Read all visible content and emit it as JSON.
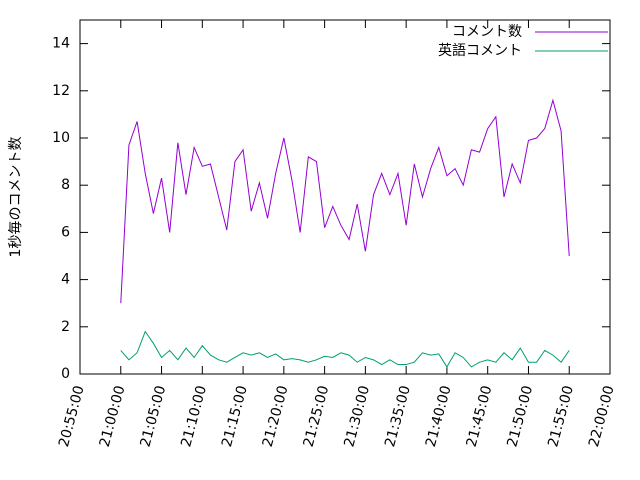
{
  "chart_data": {
    "type": "line",
    "ylabel": "1秒毎のコメント数",
    "x": [
      "21:00:00",
      "21:01:00",
      "21:02:00",
      "21:03:00",
      "21:04:00",
      "21:05:00",
      "21:06:00",
      "21:07:00",
      "21:08:00",
      "21:09:00",
      "21:10:00",
      "21:11:00",
      "21:12:00",
      "21:13:00",
      "21:14:00",
      "21:15:00",
      "21:16:00",
      "21:17:00",
      "21:18:00",
      "21:19:00",
      "21:20:00",
      "21:21:00",
      "21:22:00",
      "21:23:00",
      "21:24:00",
      "21:25:00",
      "21:26:00",
      "21:27:00",
      "21:28:00",
      "21:29:00",
      "21:30:00",
      "21:31:00",
      "21:32:00",
      "21:33:00",
      "21:34:00",
      "21:35:00",
      "21:36:00",
      "21:37:00",
      "21:38:00",
      "21:39:00",
      "21:40:00",
      "21:41:00",
      "21:42:00",
      "21:43:00",
      "21:44:00",
      "21:45:00",
      "21:46:00",
      "21:47:00",
      "21:48:00",
      "21:49:00",
      "21:50:00",
      "21:51:00",
      "21:52:00",
      "21:53:00",
      "21:54:00",
      "21:55:00"
    ],
    "series": [
      {
        "name": "コメント数",
        "color": "#9400d3",
        "values": [
          3.0,
          9.7,
          10.7,
          8.5,
          6.8,
          8.3,
          6.0,
          9.8,
          7.6,
          9.6,
          8.8,
          8.9,
          7.5,
          6.1,
          9.0,
          9.5,
          6.9,
          8.1,
          6.6,
          8.5,
          10.0,
          8.2,
          6.0,
          9.2,
          9.0,
          6.2,
          7.1,
          6.3,
          5.7,
          7.2,
          5.2,
          7.6,
          8.5,
          7.6,
          8.5,
          6.3,
          8.9,
          7.5,
          8.7,
          9.6,
          8.4,
          8.7,
          8.0,
          9.5,
          9.4,
          10.4,
          10.9,
          7.5,
          8.9,
          8.1,
          9.9,
          10.0,
          10.4,
          11.6,
          10.3,
          5.0
        ]
      },
      {
        "name": "英語コメント",
        "color": "#009e73",
        "values": [
          1.0,
          0.6,
          0.9,
          1.8,
          1.3,
          0.7,
          1.0,
          0.6,
          1.1,
          0.7,
          1.2,
          0.8,
          0.6,
          0.5,
          0.7,
          0.9,
          0.8,
          0.9,
          0.7,
          0.85,
          0.6,
          0.65,
          0.6,
          0.5,
          0.6,
          0.75,
          0.7,
          0.9,
          0.8,
          0.5,
          0.7,
          0.6,
          0.4,
          0.6,
          0.4,
          0.4,
          0.5,
          0.9,
          0.8,
          0.85,
          0.3,
          0.9,
          0.7,
          0.3,
          0.5,
          0.6,
          0.5,
          0.9,
          0.6,
          1.1,
          0.5,
          0.5,
          1.0,
          0.8,
          0.5,
          1.0
        ]
      }
    ],
    "xlim": [
      "20:55:00",
      "22:00:00"
    ],
    "xticks": [
      "20:55:00",
      "21:00:00",
      "21:05:00",
      "21:10:00",
      "21:15:00",
      "21:20:00",
      "21:25:00",
      "21:30:00",
      "21:35:00",
      "21:40:00",
      "21:45:00",
      "21:50:00",
      "21:55:00",
      "22:00:00"
    ],
    "ylim": [
      0,
      15
    ],
    "yticks": [
      0,
      2,
      4,
      6,
      8,
      10,
      12,
      14
    ],
    "grid": false,
    "legend": "top-right"
  }
}
